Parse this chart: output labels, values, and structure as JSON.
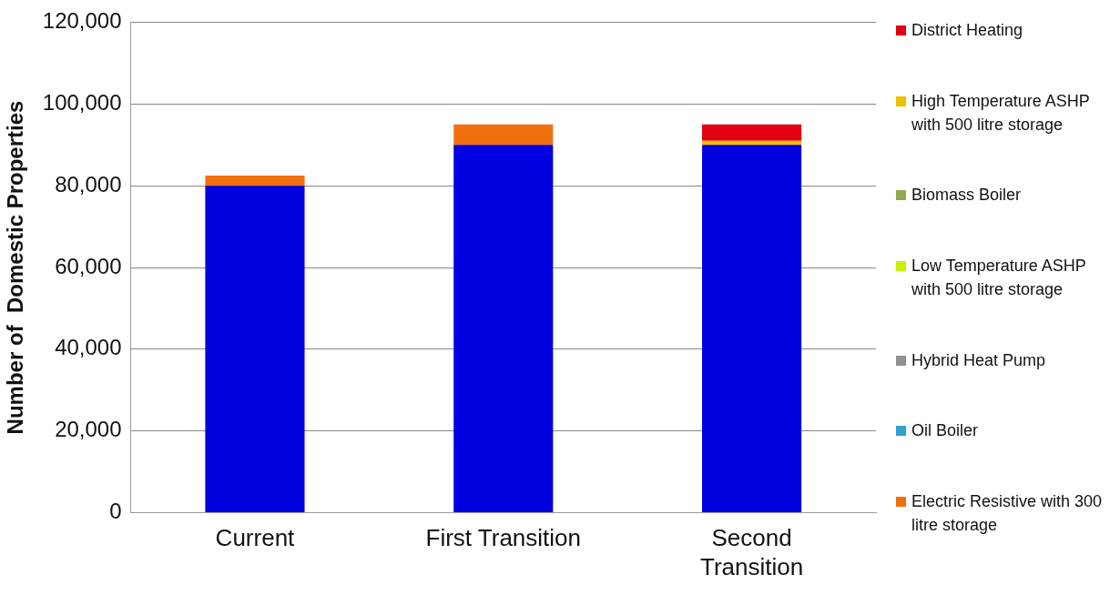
{
  "chart_data": {
    "type": "bar",
    "stacked": true,
    "ylabel": "Number of  Domestic Properties",
    "categories": [
      "Current",
      "First Transition",
      "Second Transition"
    ],
    "series": [
      {
        "color": "#0000e0",
        "values": [
          80000,
          90000,
          90000
        ]
      },
      {
        "name": "Electric Resistive with 300 litre storage",
        "color": "#f07010",
        "values": [
          2500,
          5000,
          0
        ]
      },
      {
        "name": "Oil Boiler",
        "color": "#30a0d0",
        "values": [
          0,
          0,
          0
        ]
      },
      {
        "name": "Hybrid Heat Pump",
        "color": "#909090",
        "values": [
          0,
          0,
          0
        ]
      },
      {
        "name": "Low Temperature ASHP with 500 litre storage",
        "color": "#c8f000",
        "values": [
          0,
          0,
          0
        ]
      },
      {
        "name": "Biomass Boiler",
        "color": "#90a850",
        "values": [
          0,
          0,
          0
        ]
      },
      {
        "name": "High Temperature ASHP with 500 litre storage",
        "color": "#f0c000",
        "values": [
          0,
          0,
          1000
        ]
      },
      {
        "name": "District Heating",
        "color": "#e00010",
        "values": [
          0,
          0,
          4000
        ]
      }
    ],
    "ylim": [
      0,
      120000
    ],
    "yticks": [
      {
        "value": 0,
        "label": "0"
      },
      {
        "value": 20000,
        "label": "20,000"
      },
      {
        "value": 40000,
        "label": "40,000"
      },
      {
        "value": 60000,
        "label": "60,000"
      },
      {
        "value": 80000,
        "label": "80,000"
      },
      {
        "value": 100000,
        "label": "100,000"
      },
      {
        "value": 120000,
        "label": "120,000"
      }
    ],
    "grid": "y",
    "legend": "right"
  }
}
